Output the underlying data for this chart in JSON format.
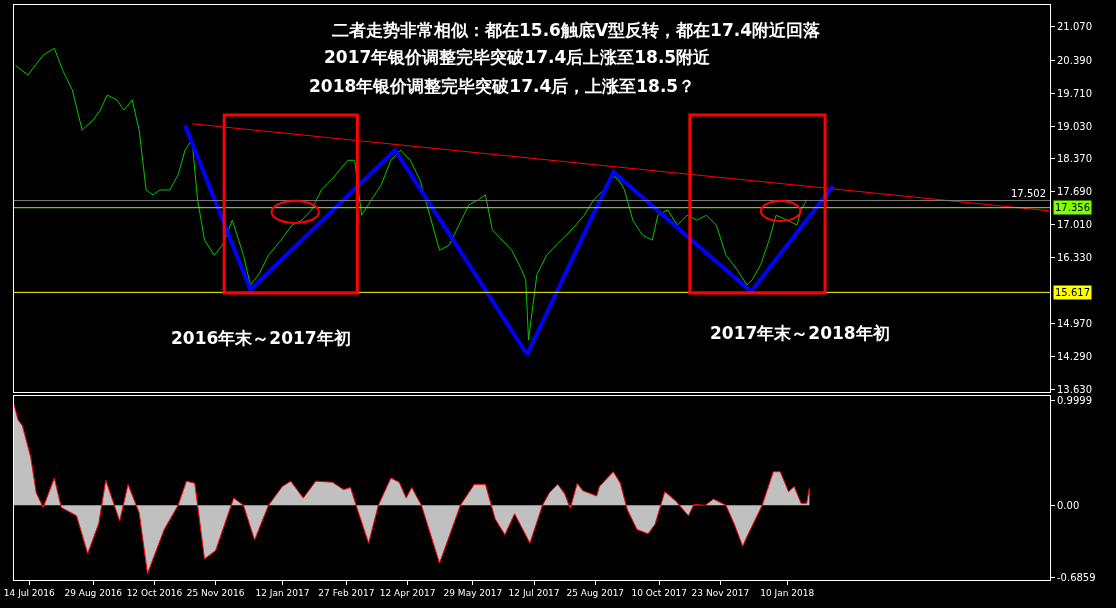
{
  "chart_data": [
    {
      "type": "line",
      "xlim": [
        "2016-07-03",
        "2018-07-18"
      ],
      "ylim": [
        13.57,
        21.52
      ],
      "tick_labels": "y",
      "yticks": [
        {
          "value": 21.07,
          "label": "21.070"
        },
        {
          "value": 20.39,
          "label": "20.390"
        },
        {
          "value": 19.71,
          "label": "19.710"
        },
        {
          "value": 19.03,
          "label": "19.030"
        },
        {
          "value": 18.37,
          "label": "18.370"
        },
        {
          "value": 17.69,
          "label": "17.690"
        },
        {
          "value": 17.01,
          "label": "17.010"
        },
        {
          "value": 16.33,
          "label": "16.330"
        },
        {
          "value": 14.97,
          "label": "14.970"
        },
        {
          "value": 14.29,
          "label": "14.290"
        },
        {
          "value": 13.63,
          "label": "13.630"
        }
      ],
      "annotations": [
        "二者走势非常相似：都在15.6触底V型反转，都在17.4附近回落",
        "2017年银价调整完毕突破17.4后上涨至18.5附近",
        "2018年银价调整完毕突破17.4后，上涨至18.5？",
        "2016年末～2017年初",
        "2017年末～2018年初"
      ],
      "ref_lines": [
        {
          "axis": "y",
          "value": 15.617,
          "label": "15.617",
          "color": "#ffff00"
        },
        {
          "axis": "y",
          "value": 17.502,
          "label": "17.502",
          "color": "#808080"
        },
        {
          "axis": "y",
          "value": 17.356,
          "label": "17.356",
          "color": "#80ff00"
        }
      ],
      "series": [
        {
          "type": "line",
          "color": "#00c800",
          "x": [
            "2016-07-04",
            "2016-07-13",
            "2016-07-24",
            "2016-08-01",
            "2016-08-07",
            "2016-08-14",
            "2016-08-21",
            "2016-08-29",
            "2016-09-03",
            "2016-09-08",
            "2016-09-15",
            "2016-09-20",
            "2016-09-26",
            "2016-10-01",
            "2016-10-06",
            "2016-10-11",
            "2016-10-16",
            "2016-10-23",
            "2016-10-29",
            "2016-11-03",
            "2016-11-08",
            "2016-11-12",
            "2016-11-17",
            "2016-11-24",
            "2016-11-30",
            "2016-12-07",
            "2016-12-15",
            "2016-12-20",
            "2016-12-26",
            "2017-01-02",
            "2017-01-11",
            "2017-01-19",
            "2017-01-26",
            "2017-02-02",
            "2017-02-09",
            "2017-02-16",
            "2017-02-28",
            "2017-03-05",
            "2017-03-10",
            "2017-03-17",
            "2017-03-24",
            "2017-03-31",
            "2017-04-07",
            "2017-04-14",
            "2017-04-21",
            "2017-04-28",
            "2017-05-05",
            "2017-05-12",
            "2017-05-19",
            "2017-05-26",
            "2017-06-02",
            "2017-06-07",
            "2017-06-12",
            "2017-06-19",
            "2017-06-26",
            "2017-07-03",
            "2017-07-06",
            "2017-07-08",
            "2017-07-14",
            "2017-07-21",
            "2017-07-28",
            "2017-08-04",
            "2017-08-11",
            "2017-08-17",
            "2017-08-24",
            "2017-08-31",
            "2017-09-06",
            "2017-09-11",
            "2017-09-15",
            "2017-09-21",
            "2017-09-28",
            "2017-10-05",
            "2017-10-09",
            "2017-10-16",
            "2017-10-23",
            "2017-10-30",
            "2017-11-06",
            "2017-11-13",
            "2017-11-20",
            "2017-11-27",
            "2017-12-05",
            "2017-12-12",
            "2017-12-16",
            "2017-12-22",
            "2017-12-28",
            "2018-01-02",
            "2018-01-10",
            "2018-01-17",
            "2018-01-20",
            "2018-01-24"
          ],
          "values": [
            20.28,
            20.08,
            20.49,
            20.63,
            20.18,
            19.77,
            18.95,
            19.16,
            19.36,
            19.67,
            19.57,
            19.36,
            19.57,
            18.95,
            17.72,
            17.62,
            17.72,
            17.72,
            18.03,
            18.54,
            18.75,
            17.52,
            16.69,
            16.38,
            16.59,
            17.1,
            16.38,
            15.77,
            15.98,
            16.38,
            16.69,
            17.0,
            17.1,
            17.31,
            17.72,
            17.92,
            18.33,
            18.33,
            17.2,
            17.52,
            17.82,
            18.33,
            18.54,
            18.33,
            17.92,
            17.2,
            16.48,
            16.59,
            17.0,
            17.41,
            17.52,
            17.62,
            16.9,
            16.69,
            16.48,
            16.08,
            15.88,
            14.64,
            15.98,
            16.38,
            16.59,
            16.79,
            17.0,
            17.2,
            17.52,
            17.72,
            18.03,
            17.92,
            17.72,
            17.1,
            16.79,
            16.69,
            17.2,
            17.31,
            17.0,
            17.2,
            17.1,
            17.2,
            17.0,
            16.38,
            16.08,
            15.77,
            15.88,
            16.19,
            16.69,
            17.2,
            17.1,
            17.0,
            17.31,
            17.52
          ]
        },
        {
          "type": "line",
          "color": "#ff0000",
          "x": [
            "2016-11-08",
            "2018-07-18"
          ],
          "values": [
            19.08,
            17.29
          ]
        },
        {
          "type": "line",
          "color": "#0000ff",
          "x": [
            "2016-11-03",
            "2016-12-20",
            "2017-04-03",
            "2017-07-07",
            "2017-09-07",
            "2017-12-15",
            "2018-02-12"
          ],
          "values": [
            19.05,
            15.67,
            18.54,
            14.34,
            18.09,
            15.63,
            17.8
          ]
        }
      ]
    },
    {
      "type": "area",
      "xlim": [
        "2016-07-03",
        "2018-07-18"
      ],
      "ylim": [
        -0.71,
        1.04
      ],
      "yticks": [
        {
          "value": 0.9999,
          "label": "0.9999"
        },
        {
          "value": 0,
          "label": "0.00"
        },
        {
          "value": -0.6859,
          "label": "-0.6859"
        }
      ],
      "xticks": [
        {
          "value": "2016-07-14",
          "label": "14 Jul 2016"
        },
        {
          "value": "2016-08-29",
          "label": "29 Aug 2016"
        },
        {
          "value": "2016-10-12",
          "label": "12 Oct 2016"
        },
        {
          "value": "2016-11-25",
          "label": "25 Nov 2016"
        },
        {
          "value": "2017-01-12",
          "label": "12 Jan 2017"
        },
        {
          "value": "2017-02-27",
          "label": "27 Feb 2017"
        },
        {
          "value": "2017-04-12",
          "label": "12 Apr 2017"
        },
        {
          "value": "2017-05-29",
          "label": "29 May 2017"
        },
        {
          "value": "2017-07-12",
          "label": "12 Jul 2017"
        },
        {
          "value": "2017-08-25",
          "label": "25 Aug 2017"
        },
        {
          "value": "2017-10-10",
          "label": "10 Oct 2017"
        },
        {
          "value": "2017-11-23",
          "label": "23 Nov 2017"
        },
        {
          "value": "2018-01-10",
          "label": "10 Jan 2018"
        }
      ],
      "series": [
        {
          "color": "#c0c0c0",
          "x": [
            "2016-07-03",
            "2016-07-06",
            "2016-07-09",
            "2016-07-15",
            "2016-07-19",
            "2016-07-24",
            "2016-08-01",
            "2016-08-06",
            "2016-08-17",
            "2016-08-25",
            "2016-09-02",
            "2016-09-07",
            "2016-09-17",
            "2016-09-23",
            "2016-10-01",
            "2016-10-07",
            "2016-10-19",
            "2016-10-29",
            "2016-11-04",
            "2016-11-10",
            "2016-11-17",
            "2016-11-25",
            "2016-12-08",
            "2016-12-15",
            "2016-12-23",
            "2017-01-02",
            "2017-01-12",
            "2017-01-18",
            "2017-01-27",
            "2017-02-05",
            "2017-02-17",
            "2017-02-25",
            "2017-03-02",
            "2017-03-06",
            "2017-03-15",
            "2017-03-22",
            "2017-03-31",
            "2017-04-06",
            "2017-04-11",
            "2017-04-15",
            "2017-04-22",
            "2017-05-05",
            "2017-05-20",
            "2017-05-30",
            "2017-06-07",
            "2017-06-14",
            "2017-06-21",
            "2017-06-28",
            "2017-07-09",
            "2017-07-18",
            "2017-07-23",
            "2017-07-29",
            "2017-08-03",
            "2017-08-07",
            "2017-08-12",
            "2017-08-16",
            "2017-08-26",
            "2017-08-28",
            "2017-09-07",
            "2017-09-12",
            "2017-09-17",
            "2017-09-24",
            "2017-10-02",
            "2017-10-07",
            "2017-10-14",
            "2017-10-22",
            "2017-10-31",
            "2017-11-04",
            "2017-11-12",
            "2017-11-18",
            "2017-11-27",
            "2017-12-03",
            "2017-12-09",
            "2017-12-12",
            "2017-12-23",
            "2017-12-31",
            "2018-01-05",
            "2018-01-11",
            "2018-01-15",
            "2018-01-20",
            "2018-01-24",
            "2018-01-26"
          ],
          "values": [
            0.96,
            0.81,
            0.76,
            0.46,
            0.12,
            -0.02,
            0.26,
            -0.02,
            -0.1,
            -0.46,
            -0.17,
            0.24,
            -0.15,
            0.2,
            -0.07,
            -0.65,
            -0.23,
            0,
            0.23,
            0.21,
            -0.51,
            -0.43,
            0.07,
            0,
            -0.33,
            0,
            0.18,
            0.23,
            0.07,
            0.23,
            0.22,
            0.15,
            0.17,
            0,
            -0.36,
            0,
            0.26,
            0.22,
            0.07,
            0.17,
            0,
            -0.55,
            0,
            0.2,
            0.2,
            -0.13,
            -0.28,
            -0.08,
            -0.36,
            0,
            0.12,
            0.2,
            0.11,
            -0.03,
            0.21,
            0.14,
            0.09,
            0.18,
            0.32,
            0.21,
            -0.04,
            -0.23,
            -0.27,
            -0.18,
            0.13,
            0.04,
            -0.1,
            0.01,
            0,
            0.06,
            0,
            -0.18,
            -0.39,
            -0.3,
            0,
            0.32,
            0.32,
            0.13,
            0.18,
            0.02,
            0.02,
            0.17
          ]
        }
      ]
    }
  ]
}
